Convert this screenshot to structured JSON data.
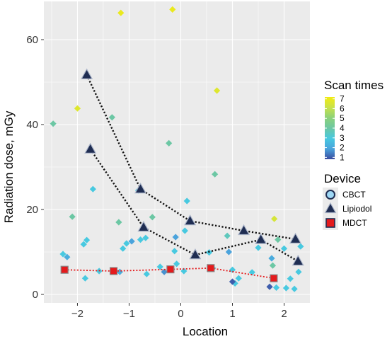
{
  "chart_data": {
    "type": "scatter",
    "xlabel": "Location",
    "ylabel": "Radiation dose, mGy",
    "xlim": [
      -2.65,
      2.5
    ],
    "ylim": [
      -2,
      69
    ],
    "xticks": [
      -2,
      -1,
      0,
      1,
      2
    ],
    "yticks": [
      0,
      20,
      40,
      60
    ],
    "x_tick_labels": [
      "−2",
      "−1",
      "0",
      "1",
      "2"
    ],
    "y_tick_labels": [
      "0",
      "20",
      "40",
      "60"
    ],
    "grid": true,
    "panel_background": "#EBEBEB",
    "color_legend": {
      "title": "Scan times",
      "min": 1,
      "max": 7,
      "ticks": [
        1,
        2,
        3,
        4,
        5,
        6,
        7
      ],
      "stops": [
        "#3B4CA0",
        "#4AA3DC",
        "#48C9E0",
        "#6CC7A4",
        "#8CD27A",
        "#C9E24A",
        "#F2EB12"
      ]
    },
    "device_legend": {
      "title": "Device",
      "entries": [
        "CBCT",
        "Lipiodol",
        "MDCT"
      ]
    },
    "series": [
      {
        "name": "CBCT",
        "marker": "diamond",
        "points": [
          {
            "x": -2.47,
            "y": 40.2,
            "scan": 4
          },
          {
            "x": -2.1,
            "y": 18.3,
            "scan": 4
          },
          {
            "x": -2.0,
            "y": 43.8,
            "scan": 6.5
          },
          {
            "x": -1.33,
            "y": 41.7,
            "scan": 4
          },
          {
            "x": -1.2,
            "y": 17.0,
            "scan": 4
          },
          {
            "x": -1.16,
            "y": 66.3,
            "scan": 6.8
          },
          {
            "x": -0.16,
            "y": 67.1,
            "scan": 6.8
          },
          {
            "x": -0.23,
            "y": 35.6,
            "scan": 4
          },
          {
            "x": -0.55,
            "y": 18.2,
            "scan": 4
          },
          {
            "x": 0.7,
            "y": 48.0,
            "scan": 6.5
          },
          {
            "x": 0.66,
            "y": 28.3,
            "scan": 4
          },
          {
            "x": 1.81,
            "y": 17.8,
            "scan": 6.3
          },
          {
            "x": 1.88,
            "y": 12.9,
            "scan": 4
          },
          {
            "x": 1.78,
            "y": 6.8,
            "scan": 4
          },
          {
            "x": 0.9,
            "y": 13.8,
            "scan": 3.6
          },
          {
            "x": -1.7,
            "y": 24.8,
            "scan": 3
          },
          {
            "x": -0.82,
            "y": 24.5,
            "scan": 3
          },
          {
            "x": 0.12,
            "y": 22.0,
            "scan": 3
          },
          {
            "x": 0.08,
            "y": 15.0,
            "scan": 3
          },
          {
            "x": -2.28,
            "y": 9.5,
            "scan": 3
          },
          {
            "x": -1.88,
            "y": 11.8,
            "scan": 3
          },
          {
            "x": -1.82,
            "y": 12.8,
            "scan": 3
          },
          {
            "x": -1.85,
            "y": 3.8,
            "scan": 3
          },
          {
            "x": -1.58,
            "y": 5.5,
            "scan": 3
          },
          {
            "x": -1.12,
            "y": 10.8,
            "scan": 3
          },
          {
            "x": -1.05,
            "y": 12.0,
            "scan": 3
          },
          {
            "x": -0.78,
            "y": 12.9,
            "scan": 3
          },
          {
            "x": -0.68,
            "y": 13.3,
            "scan": 3
          },
          {
            "x": -0.66,
            "y": 4.8,
            "scan": 3
          },
          {
            "x": -0.4,
            "y": 6.5,
            "scan": 3
          },
          {
            "x": -0.12,
            "y": 10.2,
            "scan": 3
          },
          {
            "x": -0.08,
            "y": 7.2,
            "scan": 3
          },
          {
            "x": 0.06,
            "y": 5.5,
            "scan": 3
          },
          {
            "x": 0.55,
            "y": 9.9,
            "scan": 3
          },
          {
            "x": 0.62,
            "y": 6.2,
            "scan": 3
          },
          {
            "x": 1.0,
            "y": 5.8,
            "scan": 3
          },
          {
            "x": 1.12,
            "y": 3.8,
            "scan": 3
          },
          {
            "x": 1.05,
            "y": 2.6,
            "scan": 3
          },
          {
            "x": 1.38,
            "y": 5.2,
            "scan": 3
          },
          {
            "x": 1.5,
            "y": 11.0,
            "scan": 3
          },
          {
            "x": 1.85,
            "y": 1.6,
            "scan": 3
          },
          {
            "x": 2.04,
            "y": 1.5,
            "scan": 3
          },
          {
            "x": 2.2,
            "y": 1.3,
            "scan": 3
          },
          {
            "x": 2.28,
            "y": 5.3,
            "scan": 3
          },
          {
            "x": 2.32,
            "y": 11.3,
            "scan": 3
          },
          {
            "x": 2.12,
            "y": 3.7,
            "scan": 3
          },
          {
            "x": 2.0,
            "y": 10.8,
            "scan": 3
          },
          {
            "x": -2.2,
            "y": 8.8,
            "scan": 2.3
          },
          {
            "x": -1.18,
            "y": 5.3,
            "scan": 2.3
          },
          {
            "x": -0.95,
            "y": 12.5,
            "scan": 2
          },
          {
            "x": -0.32,
            "y": 5.3,
            "scan": 1.8
          },
          {
            "x": -0.1,
            "y": 13.5,
            "scan": 2
          },
          {
            "x": 0.93,
            "y": 10.0,
            "scan": 2
          },
          {
            "x": 1.0,
            "y": 3.0,
            "scan": 1.2
          },
          {
            "x": 1.72,
            "y": 1.8,
            "scan": 1.2
          },
          {
            "x": 1.76,
            "y": 8.5,
            "scan": 2.2
          }
        ]
      },
      {
        "name": "Lipiodol",
        "marker": "triangle",
        "lines": [
          [
            {
              "x": -1.82,
              "y": 51.7
            },
            {
              "x": -0.78,
              "y": 24.8
            },
            {
              "x": 0.18,
              "y": 17.3
            },
            {
              "x": 1.22,
              "y": 15.0
            },
            {
              "x": 2.22,
              "y": 13.0
            }
          ],
          [
            {
              "x": -1.75,
              "y": 34.2
            },
            {
              "x": -0.72,
              "y": 15.8
            },
            {
              "x": 0.28,
              "y": 9.3
            },
            {
              "x": 1.55,
              "y": 12.9
            },
            {
              "x": 2.27,
              "y": 7.8
            }
          ]
        ]
      },
      {
        "name": "MDCT",
        "marker": "square",
        "points": [
          {
            "x": -2.25,
            "y": 5.8
          },
          {
            "x": -1.3,
            "y": 5.5
          },
          {
            "x": -0.2,
            "y": 5.9
          },
          {
            "x": 0.58,
            "y": 6.2
          },
          {
            "x": 1.8,
            "y": 3.8
          }
        ]
      }
    ]
  }
}
